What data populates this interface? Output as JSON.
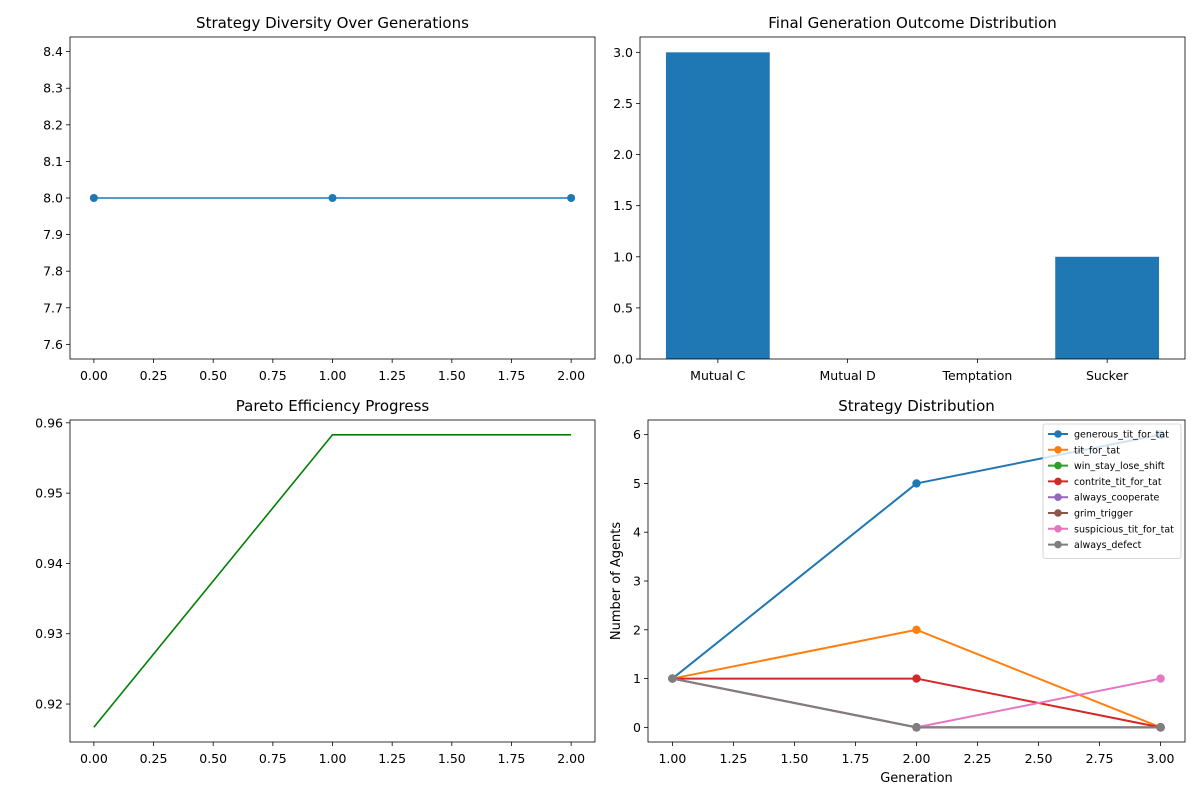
{
  "chart_data": [
    {
      "id": "diversity",
      "type": "line",
      "title": "Strategy Diversity Over Generations",
      "xlabel": "",
      "ylabel": "",
      "x": [
        0,
        1,
        2
      ],
      "series": [
        {
          "values": [
            8,
            8,
            8
          ],
          "color": "#1f77b4",
          "marker": "circle"
        }
      ],
      "xlim": [
        -0.1,
        2.1
      ],
      "ylim": [
        7.56,
        8.44
      ],
      "xticks": [
        0,
        0.25,
        0.5,
        0.75,
        1,
        1.25,
        1.5,
        1.75,
        2
      ],
      "xticklabels": [
        "0.00",
        "0.25",
        "0.50",
        "0.75",
        "1.00",
        "1.25",
        "1.50",
        "1.75",
        "2.00"
      ],
      "yticks": [
        7.6,
        7.7,
        7.8,
        7.9,
        8.0,
        8.1,
        8.2,
        8.3,
        8.4
      ],
      "yticklabels": [
        "7.6",
        "7.7",
        "7.8",
        "7.9",
        "8.0",
        "8.1",
        "8.2",
        "8.3",
        "8.4"
      ],
      "grid": false
    },
    {
      "id": "outcomes",
      "type": "bar",
      "title": "Final Generation Outcome Distribution",
      "xlabel": "",
      "ylabel": "",
      "categories": [
        "Mutual C",
        "Mutual D",
        "Temptation",
        "Sucker"
      ],
      "values": [
        3,
        0,
        0,
        1
      ],
      "color": "#1f77b4",
      "ylim": [
        0,
        3.15
      ],
      "yticks": [
        0,
        0.5,
        1,
        1.5,
        2,
        2.5,
        3
      ],
      "yticklabels": [
        "0.0",
        "0.5",
        "1.0",
        "1.5",
        "2.0",
        "2.5",
        "3.0"
      ],
      "grid": false
    },
    {
      "id": "pareto",
      "type": "line",
      "title": "Pareto Efficiency Progress",
      "xlabel": "",
      "ylabel": "",
      "x": [
        0,
        1,
        2
      ],
      "series": [
        {
          "values": [
            0.9167,
            0.9583,
            0.9583
          ],
          "color": "#008000",
          "marker": "none"
        }
      ],
      "xlim": [
        -0.1,
        2.1
      ],
      "ylim": [
        0.9146,
        0.9604
      ],
      "xticks": [
        0,
        0.25,
        0.5,
        0.75,
        1,
        1.25,
        1.5,
        1.75,
        2
      ],
      "xticklabels": [
        "0.00",
        "0.25",
        "0.50",
        "0.75",
        "1.00",
        "1.25",
        "1.50",
        "1.75",
        "2.00"
      ],
      "yticks": [
        0.92,
        0.93,
        0.94,
        0.95,
        0.96
      ],
      "yticklabels": [
        "0.92",
        "0.93",
        "0.94",
        "0.95",
        "0.96"
      ],
      "grid": false
    },
    {
      "id": "distribution",
      "type": "line",
      "title": "Strategy Distribution",
      "xlabel": "Generation",
      "ylabel": "Number of Agents",
      "x": [
        1,
        2,
        3
      ],
      "series": [
        {
          "name": "generous_tit_for_tat",
          "values": [
            1,
            5,
            6
          ],
          "color": "#1f77b4"
        },
        {
          "name": "tit_for_tat",
          "values": [
            1,
            2,
            0
          ],
          "color": "#ff7f0e"
        },
        {
          "name": "win_stay_lose_shift",
          "values": [
            1,
            0,
            0
          ],
          "color": "#2ca02c"
        },
        {
          "name": "contrite_tit_for_tat",
          "values": [
            1,
            1,
            0
          ],
          "color": "#d62728"
        },
        {
          "name": "always_cooperate",
          "values": [
            1,
            0,
            0
          ],
          "color": "#9467bd"
        },
        {
          "name": "grim_trigger",
          "values": [
            1,
            0,
            0
          ],
          "color": "#8c564b"
        },
        {
          "name": "suspicious_tit_for_tat",
          "values": [
            1,
            0,
            1
          ],
          "color": "#e377c2"
        },
        {
          "name": "always_defect",
          "values": [
            1,
            0,
            0
          ],
          "color": "#7f7f7f"
        }
      ],
      "xlim": [
        0.9,
        3.1
      ],
      "ylim": [
        -0.3,
        6.3
      ],
      "xticks": [
        1,
        1.25,
        1.5,
        1.75,
        2,
        2.25,
        2.5,
        2.75,
        3
      ],
      "xticklabels": [
        "1.00",
        "1.25",
        "1.50",
        "1.75",
        "2.00",
        "2.25",
        "2.50",
        "2.75",
        "3.00"
      ],
      "yticks": [
        0,
        1,
        2,
        3,
        4,
        5,
        6
      ],
      "yticklabels": [
        "0",
        "1",
        "2",
        "3",
        "4",
        "5",
        "6"
      ],
      "legend_position": "top-right",
      "grid": false
    }
  ]
}
